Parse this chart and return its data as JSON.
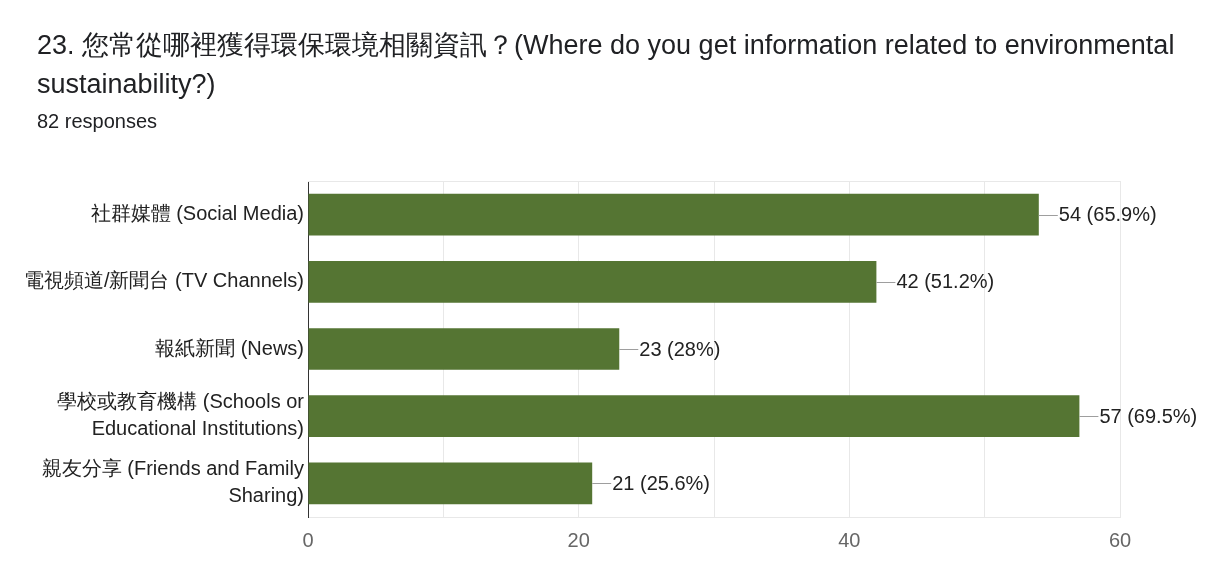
{
  "chart_data": {
    "type": "bar",
    "orientation": "horizontal",
    "title": "23. 您常從哪裡獲得環保環境相關資訊？(Where do you get information related to environmental sustainability?)",
    "subtitle": "82 responses",
    "categories": [
      "社群媒體 (Social Media)",
      "電視頻道/新聞台 (TV Channels)",
      "報紙新聞 (News)",
      "學校或教育機構 (Schools or Educational Institutions)",
      "親友分享 (Friends and Family Sharing)"
    ],
    "values": [
      54,
      42,
      23,
      57,
      21
    ],
    "value_labels": [
      "54 (65.9%)",
      "42 (51.2%)",
      "23 (28%)",
      "57 (69.5%)",
      "21 (25.6%)"
    ],
    "color": "#557533",
    "xlim": [
      0,
      60
    ],
    "xticks": [
      0,
      {
        "value": 10,
        "label": null
      },
      20,
      {
        "value": 30,
        "label": null
      },
      40,
      {
        "value": 50,
        "label": null
      },
      60
    ],
    "grid": "x"
  }
}
